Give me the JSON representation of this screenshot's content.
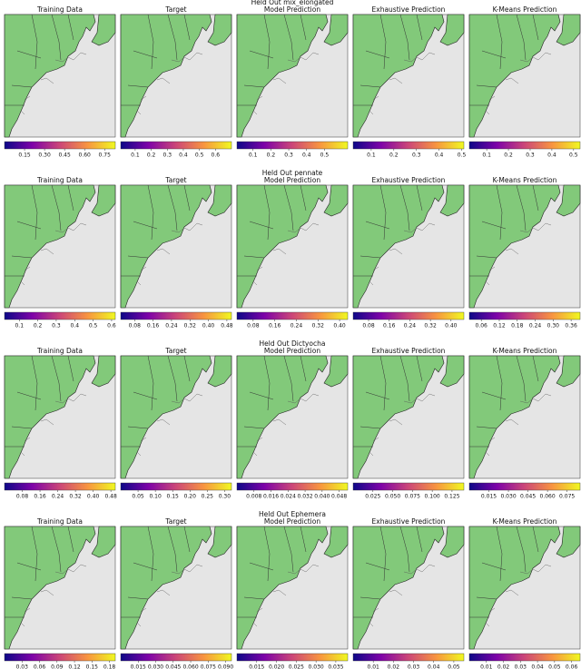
{
  "rows": [
    {
      "title": "Held Out mix_elongated",
      "panels": [
        {
          "title": "Training Data",
          "lim": [
            0.0,
            0.83
          ],
          "ticks": [
            0.15,
            {
              "value": 0.3,
              "label": "0.30"
            },
            0.45,
            {
              "value": 0.6,
              "label": "0.60"
            },
            0.75
          ]
        },
        {
          "title": "Target",
          "lim": [
            0.01,
            0.7
          ],
          "ticks": [
            0.1,
            0.2,
            0.3,
            0.4,
            0.5,
            0.6
          ]
        },
        {
          "title": "Model Prediction",
          "lim": [
            0.01,
            0.63
          ],
          "ticks": [
            0.1,
            0.2,
            0.3,
            0.4,
            0.5
          ]
        },
        {
          "title": "Exhaustive Prediction",
          "lim": [
            0.02,
            0.51
          ],
          "ticks": [
            0.1,
            0.2,
            0.3,
            0.4,
            0.5
          ]
        },
        {
          "title": "K-Means Prediction",
          "lim": [
            0.02,
            0.53
          ],
          "ticks": [
            0.1,
            0.2,
            0.3,
            0.4,
            0.5
          ]
        }
      ]
    },
    {
      "title": "Held Out pennate",
      "panels": [
        {
          "title": "Training Data",
          "lim": [
            0.02,
            0.62
          ],
          "ticks": [
            0.1,
            0.2,
            0.3,
            0.4,
            0.5,
            0.6
          ]
        },
        {
          "title": "Target",
          "lim": [
            0.02,
            0.5
          ],
          "ticks": [
            0.08,
            0.16,
            0.24,
            0.32,
            {
              "value": 0.4,
              "label": "0.40"
            },
            0.48
          ]
        },
        {
          "title": "Model Prediction",
          "lim": [
            0.02,
            0.43
          ],
          "ticks": [
            0.08,
            0.16,
            0.24,
            0.32,
            {
              "value": 0.4,
              "label": "0.40"
            }
          ]
        },
        {
          "title": "Exhaustive Prediction",
          "lim": [
            0.02,
            0.45
          ],
          "ticks": [
            0.08,
            0.16,
            0.24,
            0.32,
            {
              "value": 0.4,
              "label": "0.40"
            }
          ]
        },
        {
          "title": "K-Means Prediction",
          "lim": [
            0.02,
            0.39
          ],
          "ticks": [
            0.06,
            0.12,
            0.18,
            0.24,
            {
              "value": 0.3,
              "label": "0.30"
            },
            0.36
          ]
        }
      ]
    },
    {
      "title": "Held Out Dictyocha",
      "panels": [
        {
          "title": "Training Data",
          "lim": [
            0.0,
            0.5
          ],
          "ticks": [
            0.08,
            0.16,
            0.24,
            0.32,
            {
              "value": 0.4,
              "label": "0.40"
            },
            0.48
          ]
        },
        {
          "title": "Target",
          "lim": [
            0.0,
            0.32
          ],
          "ticks": [
            0.05,
            {
              "value": 0.1,
              "label": "0.10"
            },
            0.15,
            {
              "value": 0.2,
              "label": "0.20"
            },
            0.25,
            {
              "value": 0.3,
              "label": "0.30"
            }
          ]
        },
        {
          "title": "Model Prediction",
          "lim": [
            0.0,
            0.052
          ],
          "ticks": [
            0.008,
            0.016,
            0.024,
            0.032,
            {
              "value": 0.04,
              "label": "0.040"
            },
            0.048
          ]
        },
        {
          "title": "Exhaustive Prediction",
          "lim": [
            0.0,
            0.14
          ],
          "ticks": [
            0.025,
            {
              "value": 0.05,
              "label": "0.050"
            },
            0.075,
            {
              "value": 0.1,
              "label": "0.100"
            },
            0.125
          ]
        },
        {
          "title": "K-Means Prediction",
          "lim": [
            0.0,
            0.085
          ],
          "ticks": [
            0.015,
            {
              "value": 0.03,
              "label": "0.030"
            },
            0.045,
            {
              "value": 0.06,
              "label": "0.060"
            },
            0.075
          ]
        }
      ]
    },
    {
      "title": "Held Out Ephemera",
      "panels": [
        {
          "title": "Training Data",
          "lim": [
            0.0,
            0.19
          ],
          "ticks": [
            0.03,
            0.06,
            0.09,
            0.12,
            0.15,
            0.18
          ]
        },
        {
          "title": "Target",
          "lim": [
            0.0,
            0.095
          ],
          "ticks": [
            0.015,
            {
              "value": 0.03,
              "label": "0.030"
            },
            0.045,
            {
              "value": 0.06,
              "label": "0.060"
            },
            0.075,
            {
              "value": 0.09,
              "label": "0.090"
            }
          ]
        },
        {
          "title": "Model Prediction",
          "lim": [
            0.01,
            0.038
          ],
          "ticks": [
            0.015,
            {
              "value": 0.02,
              "label": "0.020"
            },
            0.025,
            {
              "value": 0.03,
              "label": "0.030"
            },
            0.035
          ]
        },
        {
          "title": "Exhaustive Prediction",
          "lim": [
            0.0,
            0.055
          ],
          "ticks": [
            0.01,
            0.02,
            0.03,
            0.04,
            0.05
          ]
        },
        {
          "title": "K-Means Prediction",
          "lim": [
            0.0,
            0.065
          ],
          "ticks": [
            0.01,
            0.02,
            0.03,
            0.04,
            0.05,
            0.06
          ]
        }
      ]
    }
  ]
}
